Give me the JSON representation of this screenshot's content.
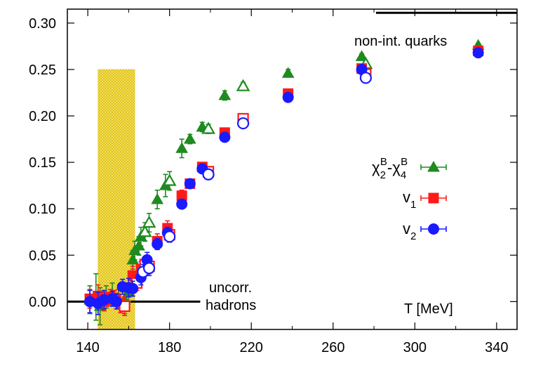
{
  "chart_data": {
    "type": "scatter",
    "title": "",
    "xlabel": "T [MeV]",
    "ylabel": "",
    "xlim": [
      130,
      350
    ],
    "ylim": [
      -0.03,
      0.315
    ],
    "xticks": [
      140,
      180,
      220,
      260,
      300,
      340
    ],
    "yticks": [
      0.0,
      0.05,
      0.1,
      0.15,
      0.2,
      0.25,
      0.3
    ],
    "xtick_labels": [
      "140",
      "180",
      "220",
      "260",
      "300",
      "340"
    ],
    "ytick_labels": [
      "0.00",
      "0.05",
      "0.10",
      "0.15",
      "0.20",
      "0.25",
      "0.30"
    ],
    "band": {
      "x": [
        145,
        163
      ],
      "y": [
        -0.03,
        0.25
      ],
      "color": "#f2d21a"
    },
    "reference_lines": [
      {
        "name": "non-interacting quarks",
        "x": [
          281,
          350
        ],
        "y": 0.311
      },
      {
        "name": "uncorrelated hadrons",
        "x": [
          130,
          195
        ],
        "y": 0.0
      }
    ],
    "annotations": {
      "quarks": "non-int. quarks",
      "hadrons_line1": "uncorr.",
      "hadrons_line2": "hadrons"
    },
    "legend": {
      "placement": "right",
      "entries": [
        {
          "base": "χ",
          "sub1": "2",
          "sup1": "B",
          "dash": "-",
          "base2": "χ",
          "sub2": "4",
          "sup2": "B"
        },
        {
          "base": "v",
          "sub1": "1"
        },
        {
          "base": "v",
          "sub1": "2"
        }
      ]
    },
    "series": [
      {
        "name": "chi2B - chi4B",
        "color": "#1f8a1f",
        "marker": "triangle",
        "points": [
          {
            "x": 141,
            "y": 0.002,
            "err": 0.015,
            "filled": true
          },
          {
            "x": 144,
            "y": 0.005,
            "err": 0.025,
            "filled": true
          },
          {
            "x": 146,
            "y": -0.005,
            "err": 0.02,
            "filled": true
          },
          {
            "x": 149,
            "y": 0.005,
            "err": 0.012,
            "filled": true
          },
          {
            "x": 152,
            "y": 0.008,
            "err": 0.012,
            "filled": true
          },
          {
            "x": 155,
            "y": 0.003,
            "err": 0.01,
            "filled": true
          },
          {
            "x": 158,
            "y": 0.002,
            "err": 0.015,
            "filled": true
          },
          {
            "x": 160,
            "y": 0.01,
            "err": 0.01,
            "filled": true
          },
          {
            "x": 162,
            "y": 0.045,
            "err": 0.01,
            "filled": true
          },
          {
            "x": 163,
            "y": 0.055,
            "err": 0.01,
            "filled": true
          },
          {
            "x": 165,
            "y": 0.06,
            "err": 0.01,
            "filled": true
          },
          {
            "x": 166,
            "y": 0.07,
            "err": 0.01,
            "filled": true
          },
          {
            "x": 168,
            "y": 0.075,
            "err": 0.01,
            "filled": false
          },
          {
            "x": 170,
            "y": 0.085,
            "err": 0.01,
            "filled": false
          },
          {
            "x": 174,
            "y": 0.11,
            "err": 0.01,
            "filled": true
          },
          {
            "x": 178,
            "y": 0.125,
            "err": 0.012,
            "filled": true
          },
          {
            "x": 180,
            "y": 0.13,
            "err": 0.01,
            "filled": false
          },
          {
            "x": 186,
            "y": 0.165,
            "err": 0.01,
            "filled": true
          },
          {
            "x": 190,
            "y": 0.175,
            "err": 0.005,
            "filled": true
          },
          {
            "x": 196,
            "y": 0.188,
            "err": 0.005,
            "filled": true
          },
          {
            "x": 199,
            "y": 0.186,
            "err": 0.005,
            "filled": false
          },
          {
            "x": 207,
            "y": 0.222,
            "err": 0.005,
            "filled": true
          },
          {
            "x": 216,
            "y": 0.232,
            "err": 0.004,
            "filled": false
          },
          {
            "x": 238,
            "y": 0.246,
            "err": 0.004,
            "filled": true
          },
          {
            "x": 274,
            "y": 0.264,
            "err": 0.003,
            "filled": true
          },
          {
            "x": 276,
            "y": 0.256,
            "err": 0.003,
            "filled": false
          },
          {
            "x": 331,
            "y": 0.276,
            "err": 0.002,
            "filled": true
          }
        ]
      },
      {
        "name": "v1",
        "color": "#ff1a1a",
        "marker": "square",
        "points": [
          {
            "x": 141,
            "y": 0.003,
            "err": 0.01,
            "filled": true
          },
          {
            "x": 145,
            "y": 0.006,
            "err": 0.012,
            "filled": true
          },
          {
            "x": 148,
            "y": 0.0,
            "err": 0.01,
            "filled": true
          },
          {
            "x": 151,
            "y": 0.005,
            "err": 0.008,
            "filled": true
          },
          {
            "x": 153,
            "y": 0.004,
            "err": 0.008,
            "filled": true
          },
          {
            "x": 156,
            "y": -0.002,
            "err": 0.01,
            "filled": true
          },
          {
            "x": 158,
            "y": -0.005,
            "err": 0.01,
            "filled": false
          },
          {
            "x": 162,
            "y": 0.028,
            "err": 0.01,
            "filled": true
          },
          {
            "x": 164,
            "y": 0.02,
            "err": 0.008,
            "filled": false
          },
          {
            "x": 166,
            "y": 0.035,
            "err": 0.008,
            "filled": true
          },
          {
            "x": 168,
            "y": 0.04,
            "err": 0.008,
            "filled": false
          },
          {
            "x": 170,
            "y": 0.038,
            "err": 0.008,
            "filled": false
          },
          {
            "x": 174,
            "y": 0.065,
            "err": 0.008,
            "filled": true
          },
          {
            "x": 179,
            "y": 0.079,
            "err": 0.008,
            "filled": true
          },
          {
            "x": 180,
            "y": 0.072,
            "err": 0.008,
            "filled": false
          },
          {
            "x": 186,
            "y": 0.114,
            "err": 0.006,
            "filled": true
          },
          {
            "x": 190,
            "y": 0.127,
            "err": 0.004,
            "filled": true
          },
          {
            "x": 196,
            "y": 0.145,
            "err": 0.004,
            "filled": true
          },
          {
            "x": 199,
            "y": 0.14,
            "err": 0.004,
            "filled": false
          },
          {
            "x": 207,
            "y": 0.182,
            "err": 0.004,
            "filled": true
          },
          {
            "x": 216,
            "y": 0.197,
            "err": 0.003,
            "filled": false
          },
          {
            "x": 238,
            "y": 0.224,
            "err": 0.003,
            "filled": true
          },
          {
            "x": 274,
            "y": 0.251,
            "err": 0.003,
            "filled": true
          },
          {
            "x": 276,
            "y": 0.245,
            "err": 0.003,
            "filled": false
          },
          {
            "x": 331,
            "y": 0.27,
            "err": 0.002,
            "filled": true
          }
        ]
      },
      {
        "name": "v2",
        "color": "#1a1aff",
        "marker": "circle",
        "points": [
          {
            "x": 141,
            "y": 0.0,
            "err": 0.012,
            "filled": true
          },
          {
            "x": 145,
            "y": -0.002,
            "err": 0.012,
            "filled": true
          },
          {
            "x": 148,
            "y": 0.002,
            "err": 0.01,
            "filled": true
          },
          {
            "x": 152,
            "y": 0.003,
            "err": 0.008,
            "filled": true
          },
          {
            "x": 154,
            "y": 0.0,
            "err": 0.008,
            "filled": true
          },
          {
            "x": 157,
            "y": 0.016,
            "err": 0.008,
            "filled": true
          },
          {
            "x": 160,
            "y": 0.015,
            "err": 0.01,
            "filled": true
          },
          {
            "x": 162,
            "y": 0.014,
            "err": 0.008,
            "filled": true
          },
          {
            "x": 166,
            "y": 0.026,
            "err": 0.008,
            "filled": true
          },
          {
            "x": 167,
            "y": 0.032,
            "err": 0.008,
            "filled": false
          },
          {
            "x": 169,
            "y": 0.045,
            "err": 0.008,
            "filled": true
          },
          {
            "x": 170,
            "y": 0.036,
            "err": 0.008,
            "filled": false
          },
          {
            "x": 174,
            "y": 0.062,
            "err": 0.006,
            "filled": true
          },
          {
            "x": 179,
            "y": 0.074,
            "err": 0.006,
            "filled": true
          },
          {
            "x": 180,
            "y": 0.07,
            "err": 0.006,
            "filled": false
          },
          {
            "x": 186,
            "y": 0.105,
            "err": 0.005,
            "filled": true
          },
          {
            "x": 190,
            "y": 0.127,
            "err": 0.004,
            "filled": true
          },
          {
            "x": 196,
            "y": 0.143,
            "err": 0.004,
            "filled": true
          },
          {
            "x": 199,
            "y": 0.137,
            "err": 0.004,
            "filled": false
          },
          {
            "x": 207,
            "y": 0.177,
            "err": 0.003,
            "filled": true
          },
          {
            "x": 216,
            "y": 0.192,
            "err": 0.003,
            "filled": false
          },
          {
            "x": 238,
            "y": 0.22,
            "err": 0.003,
            "filled": true
          },
          {
            "x": 274,
            "y": 0.25,
            "err": 0.003,
            "filled": true
          },
          {
            "x": 276,
            "y": 0.241,
            "err": 0.003,
            "filled": false
          },
          {
            "x": 331,
            "y": 0.268,
            "err": 0.002,
            "filled": true
          }
        ]
      }
    ]
  }
}
